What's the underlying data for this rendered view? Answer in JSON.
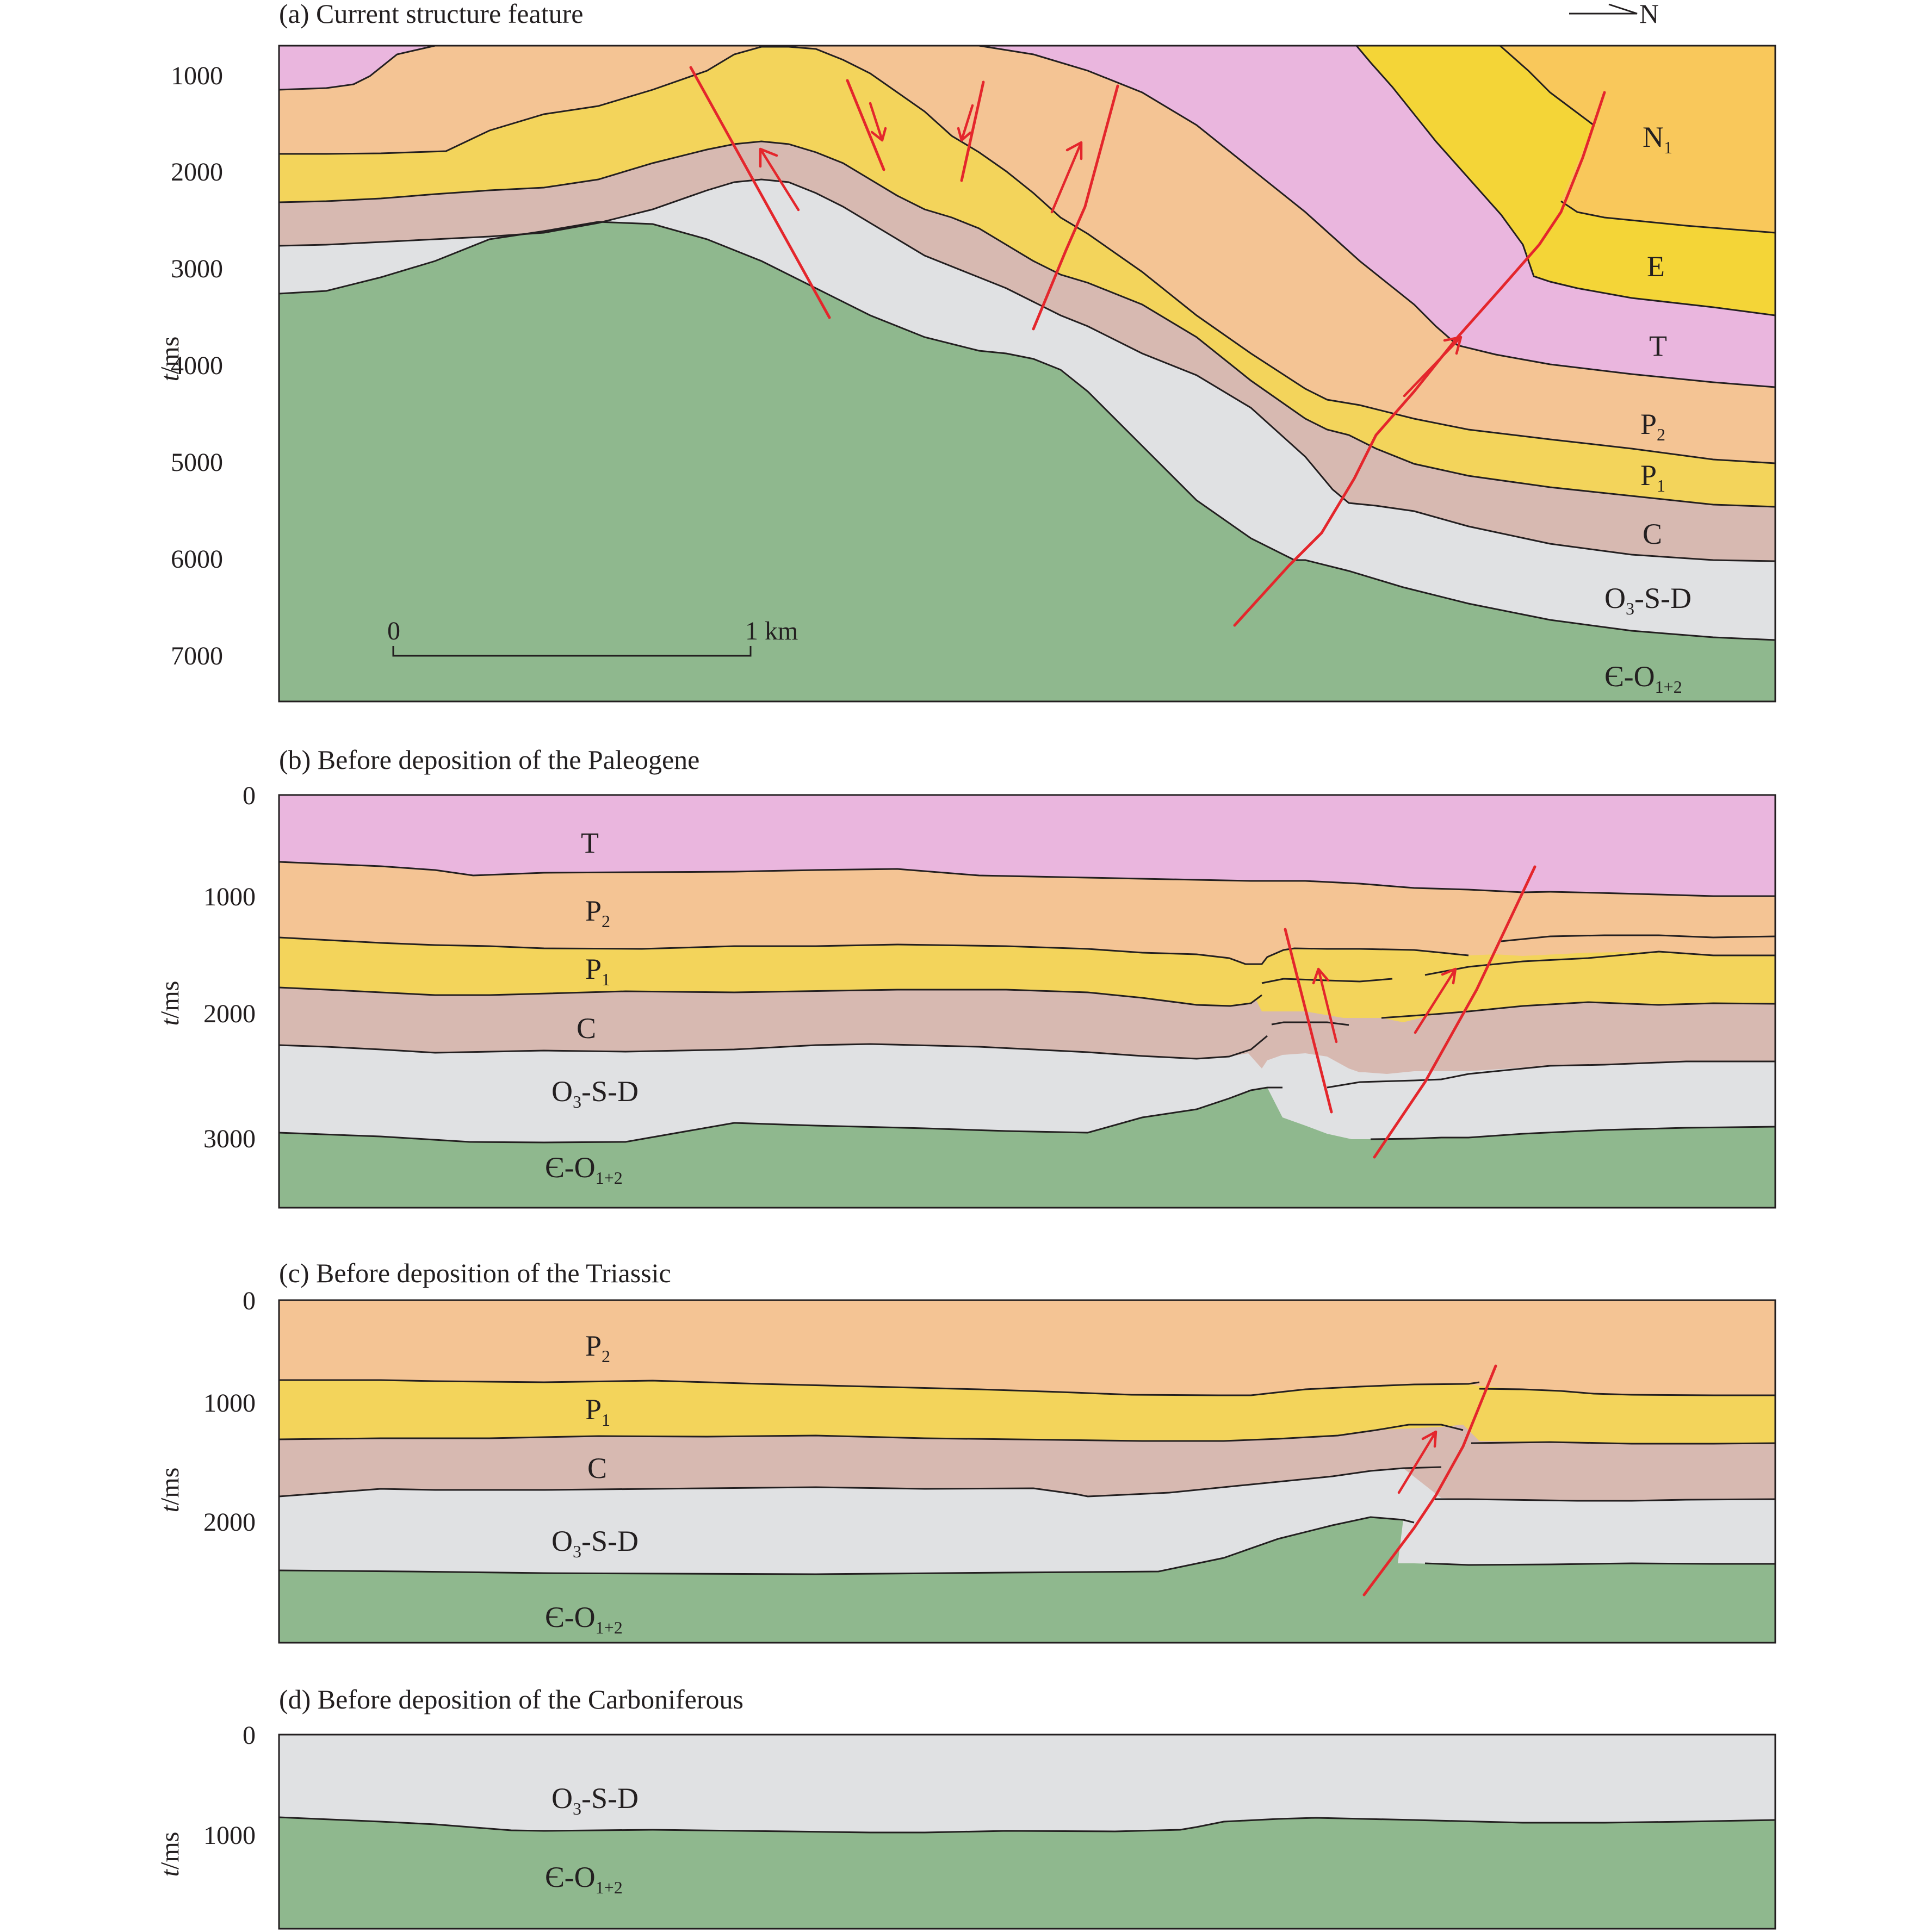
{
  "colors": {
    "N1": "#f9c85b",
    "E": "#f4d537",
    "T": "#eab6de",
    "P2": "#f4c494",
    "P1": "#f3d45b",
    "C": "#d7b9b1",
    "O3SD": "#e0e1e3",
    "EO": "#8fb88e",
    "fault": "#e4262c",
    "line": "#231f20"
  },
  "panels": {
    "a": {
      "title": "(a) Current structure feature",
      "ylabel_italic": "t",
      "ylabel_rest": "/ms",
      "yticks": [
        "1000",
        "2000",
        "3000",
        "4000",
        "5000",
        "6000",
        "7000"
      ],
      "north": "N",
      "scale_zero": "0",
      "scale_one": "1 km",
      "labels": {
        "N1_main": "N",
        "N1_sub": "1",
        "E": "E",
        "T": "T",
        "P2_main": "P",
        "P2_sub": "2",
        "P1_main": "P",
        "P1_sub": "1",
        "C": "C",
        "O3SD_a": "O",
        "O3SD_sub": "3",
        "O3SD_b": "-S-D",
        "EO_a": "Є-O",
        "EO_sub": "1+2"
      }
    },
    "b": {
      "title": "(b) Before deposition of the Paleogene",
      "ylabel_italic": "t",
      "ylabel_rest": "/ms",
      "yticks": [
        "0",
        "1000",
        "2000",
        "3000"
      ],
      "labels": {
        "T": "T",
        "P2_main": "P",
        "P2_sub": "2",
        "P1_main": "P",
        "P1_sub": "1",
        "C": "C",
        "O3SD_a": "O",
        "O3SD_sub": "3",
        "O3SD_b": "-S-D",
        "EO_a": "Є-O",
        "EO_sub": "1+2"
      }
    },
    "c": {
      "title": "(c) Before deposition of the Triassic",
      "ylabel_italic": "t",
      "ylabel_rest": "/ms",
      "yticks": [
        "0",
        "1000",
        "2000"
      ],
      "labels": {
        "P2_main": "P",
        "P2_sub": "2",
        "P1_main": "P",
        "P1_sub": "1",
        "C": "C",
        "O3SD_a": "O",
        "O3SD_sub": "3",
        "O3SD_b": "-S-D",
        "EO_a": "Є-O",
        "EO_sub": "1+2"
      }
    },
    "d": {
      "title": "(d) Before deposition of the Carboniferous",
      "ylabel_italic": "t",
      "ylabel_rest": "/ms",
      "yticks": [
        "0",
        "1000"
      ],
      "labels": {
        "O3SD_a": "O",
        "O3SD_sub": "3",
        "O3SD_b": "-S-D",
        "EO_a": "Є-O",
        "EO_sub": "1+2"
      }
    }
  }
}
